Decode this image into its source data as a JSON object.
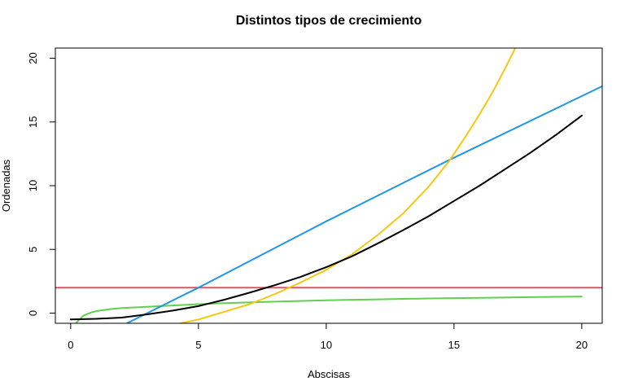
{
  "chart_data": {
    "type": "line",
    "title": "Distintos tipos de crecimiento",
    "xlabel": "Abscisas",
    "ylabel": "Ordenadas",
    "xlim": [
      -0.6,
      20.8
    ],
    "ylim": [
      -0.8,
      20.8
    ],
    "xticks": [
      0,
      5,
      10,
      15,
      20
    ],
    "yticks": [
      0,
      5,
      10,
      15,
      20
    ],
    "grid": false,
    "series": [
      {
        "color": "#df536b",
        "points": [
          [
            -0.6,
            2
          ],
          [
            20.8,
            2
          ]
        ]
      },
      {
        "color": "#61d04f",
        "points": [
          [
            0.2,
            -0.8
          ],
          [
            0.5,
            -0.2
          ],
          [
            0.8,
            0.05
          ],
          [
            1,
            0.15
          ],
          [
            1.5,
            0.3
          ],
          [
            2,
            0.4
          ],
          [
            3,
            0.5
          ],
          [
            4,
            0.6
          ],
          [
            5,
            0.7
          ],
          [
            6,
            0.78
          ],
          [
            8,
            0.9
          ],
          [
            10,
            1.0
          ],
          [
            12,
            1.08
          ],
          [
            14,
            1.15
          ],
          [
            16,
            1.2
          ],
          [
            18,
            1.25
          ],
          [
            20,
            1.3
          ]
        ]
      },
      {
        "color": "#2297e6",
        "points": [
          [
            2.2,
            -0.8
          ],
          [
            5,
            2
          ],
          [
            10,
            7.2
          ],
          [
            14.8,
            12
          ],
          [
            20.8,
            17.8
          ]
        ]
      },
      {
        "color": "#f5c710",
        "points": [
          [
            4.3,
            -0.8
          ],
          [
            5,
            -0.5
          ],
          [
            6,
            0.1
          ],
          [
            7,
            0.7
          ],
          [
            8,
            1.5
          ],
          [
            9,
            2.4
          ],
          [
            10,
            3.4
          ],
          [
            11,
            4.6
          ],
          [
            12,
            6.1
          ],
          [
            13,
            7.8
          ],
          [
            14,
            9.9
          ],
          [
            14.8,
            11.9
          ],
          [
            15.5,
            14.0
          ],
          [
            16,
            15.6
          ],
          [
            16.5,
            17.3
          ],
          [
            17,
            19.2
          ],
          [
            17.4,
            20.8
          ]
        ]
      },
      {
        "color": "#000000",
        "points": [
          [
            0,
            -0.5
          ],
          [
            1,
            -0.45
          ],
          [
            2,
            -0.35
          ],
          [
            3,
            -0.1
          ],
          [
            4,
            0.2
          ],
          [
            5,
            0.55
          ],
          [
            6,
            1.05
          ],
          [
            7,
            1.6
          ],
          [
            8,
            2.2
          ],
          [
            9,
            2.85
          ],
          [
            10,
            3.6
          ],
          [
            11,
            4.45
          ],
          [
            12,
            5.45
          ],
          [
            13,
            6.5
          ],
          [
            14,
            7.6
          ],
          [
            15,
            8.8
          ],
          [
            16,
            10.0
          ],
          [
            17,
            11.3
          ],
          [
            18,
            12.6
          ],
          [
            19,
            14.0
          ],
          [
            20,
            15.5
          ]
        ]
      }
    ]
  }
}
